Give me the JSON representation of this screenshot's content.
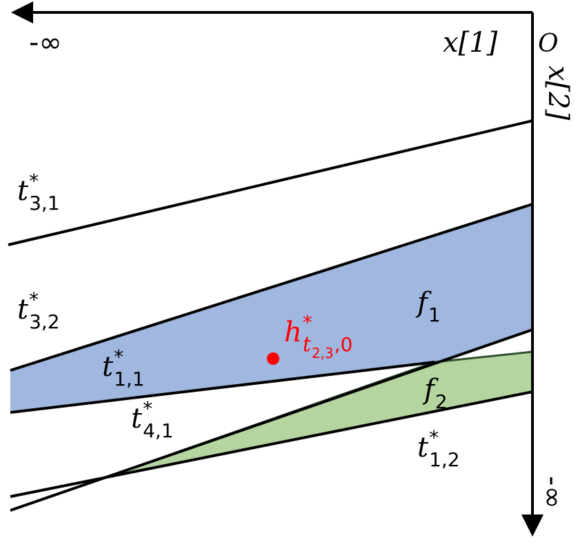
{
  "axes": {
    "x1_neg_inf": "-∞",
    "x1_label": "x[1]",
    "origin": "O",
    "x2_label": "x[2]",
    "x2_neg_inf": "-∞"
  },
  "labels": [
    {
      "base": "t",
      "sup": "*",
      "sub": "3,1"
    },
    {
      "base": "t",
      "sup": "*",
      "sub": "3,2"
    },
    {
      "base": "t",
      "sup": "*",
      "sub": "1,1"
    },
    {
      "base": "t",
      "sup": "*",
      "sub": "4,1"
    },
    {
      "base": "t",
      "sup": "*",
      "sub": "1,2"
    },
    {
      "base": "f",
      "sub": "1"
    },
    {
      "base": "f",
      "sub": "2"
    }
  ],
  "point_label": {
    "base": "h",
    "sup": "*",
    "sub": "t",
    "subsub": "2,3",
    "subtail": ",0"
  }
}
